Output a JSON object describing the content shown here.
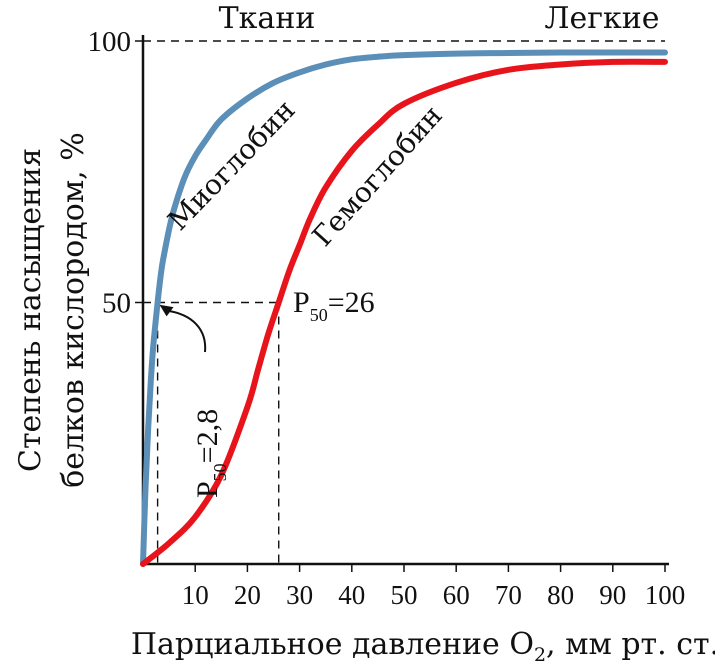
{
  "chart_data": {
    "type": "line",
    "xlabel": "Парциальное давление O",
    "xlabel_sub": "2",
    "xlabel_tail": ", мм рт. ст.",
    "ylabel_line1": "Степень насыщения",
    "ylabel_line2": "белков кислородом, %",
    "xlim": [
      0,
      100
    ],
    "ylim": [
      0,
      100
    ],
    "x_ticks": [
      10,
      20,
      30,
      40,
      50,
      60,
      70,
      80,
      90,
      100
    ],
    "y_ticks": [
      50,
      100
    ],
    "grid": false,
    "region_labels": {
      "tissues": "Ткани",
      "lungs": "Легкие"
    },
    "series": [
      {
        "name": "Миоглобин",
        "color": "#5b8fb8",
        "x": [
          0,
          0.5,
          1,
          1.5,
          2,
          2.8,
          3.5,
          4,
          5,
          6,
          8,
          10,
          12,
          15,
          20,
          25,
          30,
          35,
          40,
          45,
          50,
          60,
          70,
          80,
          90,
          100
        ],
        "y": [
          0,
          15,
          26,
          35,
          42,
          50,
          56,
          59,
          64,
          68,
          74,
          78,
          81,
          85,
          89,
          92,
          94,
          95.5,
          96.5,
          97,
          97.3,
          97.6,
          97.7,
          97.8,
          97.8,
          97.8
        ]
      },
      {
        "name": "Гемоглобин",
        "color": "#e8141b",
        "x": [
          0,
          5,
          10,
          15,
          20,
          22,
          24,
          26,
          28,
          30,
          32,
          35,
          40,
          45,
          50,
          60,
          70,
          80,
          90,
          100
        ],
        "y": [
          0,
          4,
          9,
          17,
          30,
          37,
          44,
          50,
          56,
          61,
          66,
          72,
          79,
          84,
          88,
          92,
          94.5,
          95.5,
          96,
          96
        ],
        "label": "Гемоглобин"
      }
    ],
    "annotations": {
      "myo_p50_label": "P",
      "myo_p50_sub": "50",
      "myo_p50_value": "=2,8",
      "hb_p50_label": "P",
      "hb_p50_sub": "50",
      "hb_p50_value": "=26",
      "myo_p50_x": 2.8,
      "hb_p50_x": 26,
      "p50_y": 50
    }
  }
}
